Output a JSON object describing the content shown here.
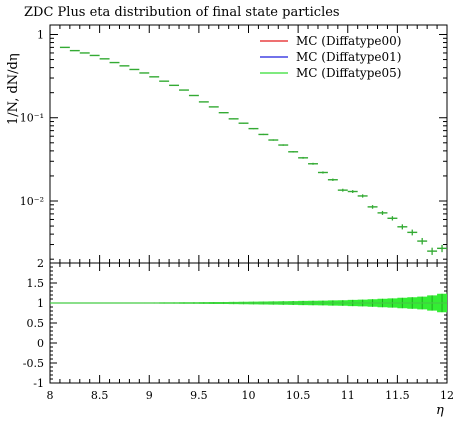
{
  "chart_data": [
    {
      "type": "line",
      "panel": "main",
      "title": "ZDC Plus eta distribution of final state particles",
      "ylabel": "1/N, dN/dη",
      "xlabel": "",
      "xlim": [
        8,
        12
      ],
      "ylim": [
        0.0018,
        1.3
      ],
      "yscale": "log",
      "yticks": [
        {
          "value": 1,
          "label": "1"
        },
        {
          "value": 0.1,
          "label": "10⁻¹"
        },
        {
          "value": 0.01,
          "label": "10⁻²"
        }
      ],
      "legend": "top-right",
      "series": [
        {
          "name": "MC (Diffatype00)",
          "color": "#e31a1c"
        },
        {
          "name": "MC (Diffatype01)",
          "color": "#1f1fdd"
        },
        {
          "name": "MC (Diffatype05)",
          "color": "#33dd33"
        }
      ],
      "bin_width": 0.1,
      "x": [
        8.15,
        8.25,
        8.35,
        8.45,
        8.55,
        8.65,
        8.75,
        8.85,
        8.95,
        9.05,
        9.15,
        9.25,
        9.35,
        9.45,
        9.55,
        9.65,
        9.75,
        9.85,
        9.95,
        10.05,
        10.15,
        10.25,
        10.35,
        10.45,
        10.55,
        10.65,
        10.75,
        10.85,
        10.95,
        11.05,
        11.15,
        11.25,
        11.35,
        11.45,
        11.55,
        11.65,
        11.75,
        11.85,
        11.95
      ],
      "y": [
        0.7,
        0.64,
        0.6,
        0.56,
        0.51,
        0.46,
        0.42,
        0.38,
        0.345,
        0.31,
        0.275,
        0.245,
        0.215,
        0.185,
        0.155,
        0.135,
        0.115,
        0.097,
        0.086,
        0.074,
        0.063,
        0.054,
        0.047,
        0.039,
        0.033,
        0.028,
        0.022,
        0.018,
        0.0135,
        0.013,
        0.0115,
        0.0085,
        0.0072,
        0.0062,
        0.0049,
        0.0042,
        0.0033,
        0.0025,
        0.0027
      ],
      "yerr_rel": [
        0.004,
        0.004,
        0.004,
        0.005,
        0.005,
        0.005,
        0.006,
        0.006,
        0.006,
        0.007,
        0.007,
        0.008,
        0.008,
        0.009,
        0.01,
        0.011,
        0.012,
        0.013,
        0.014,
        0.016,
        0.017,
        0.019,
        0.02,
        0.022,
        0.025,
        0.027,
        0.03,
        0.033,
        0.04,
        0.04,
        0.045,
        0.05,
        0.055,
        0.06,
        0.07,
        0.08,
        0.09,
        0.1,
        0.1
      ]
    },
    {
      "type": "area",
      "panel": "ratio",
      "ylim": [
        -1,
        2
      ],
      "yticks": [
        -1,
        -0.5,
        0,
        0.5,
        1,
        1.5,
        2
      ],
      "xticks": [
        8,
        8.5,
        9,
        9.5,
        10,
        10.5,
        11,
        11.5,
        12
      ],
      "xlabel": "η",
      "x": [
        8.05,
        8.15,
        8.25,
        8.35,
        8.45,
        8.55,
        8.65,
        8.75,
        8.85,
        8.95,
        9.05,
        9.15,
        9.25,
        9.35,
        9.45,
        9.55,
        9.65,
        9.75,
        9.85,
        9.95,
        10.05,
        10.15,
        10.25,
        10.35,
        10.45,
        10.55,
        10.65,
        10.75,
        10.85,
        10.95,
        11.05,
        11.15,
        11.25,
        11.35,
        11.45,
        11.55,
        11.65,
        11.75,
        11.85,
        11.95
      ],
      "ratio": [
        1,
        1,
        1,
        1,
        1,
        1,
        1,
        1,
        1,
        1,
        1,
        1,
        1,
        1,
        1,
        1,
        1,
        1,
        1,
        1,
        1,
        1,
        1,
        1,
        1,
        1,
        1,
        1,
        1,
        1,
        1,
        1,
        1,
        1,
        1,
        1,
        1,
        1,
        1,
        1
      ],
      "band_halfwidth": [
        0.008,
        0.008,
        0.008,
        0.009,
        0.009,
        0.01,
        0.01,
        0.011,
        0.012,
        0.013,
        0.014,
        0.015,
        0.016,
        0.018,
        0.02,
        0.022,
        0.024,
        0.026,
        0.028,
        0.03,
        0.033,
        0.036,
        0.04,
        0.044,
        0.048,
        0.052,
        0.056,
        0.06,
        0.065,
        0.07,
        0.078,
        0.085,
        0.095,
        0.105,
        0.115,
        0.13,
        0.145,
        0.16,
        0.19,
        0.23
      ]
    }
  ],
  "colors": {
    "band": "#33ee33",
    "band_edge": "#22aa22",
    "line": "#44cc44",
    "marker": "#33aa33"
  },
  "tick_labels": {
    "x": [
      "8",
      "8.5",
      "9",
      "9.5",
      "10",
      "10.5",
      "11",
      "11.5",
      "12"
    ],
    "ratio_y": [
      "2",
      "1.5",
      "1",
      "0.5",
      "0",
      "-0.5",
      "-1"
    ]
  }
}
